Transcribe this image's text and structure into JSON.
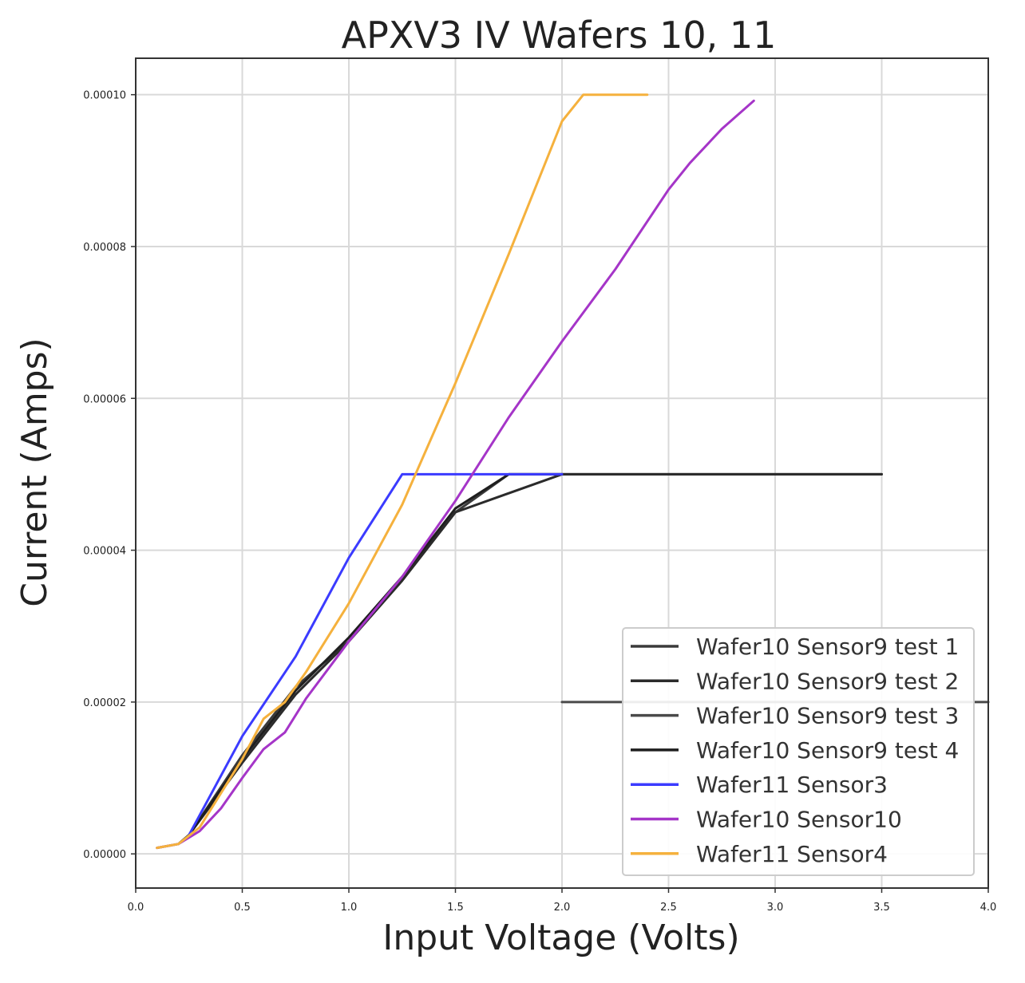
{
  "chart_data": {
    "type": "line",
    "title": "APXV3 IV Wafers 10, 11",
    "xlabel": "Input Voltage (Volts)",
    "ylabel": "Current (Amps)",
    "xlim": [
      0.0,
      4.0
    ],
    "ylim": [
      -4.5e-06,
      0.0001048
    ],
    "xticks": [
      0.0,
      0.5,
      1.0,
      1.5,
      2.0,
      2.5,
      3.0,
      3.5,
      4.0
    ],
    "xtick_labels": [
      "0.0",
      "0.5",
      "1.0",
      "1.5",
      "2.0",
      "2.5",
      "3.0",
      "3.5",
      "4.0"
    ],
    "yticks": [
      0.0,
      2e-05,
      4e-05,
      6e-05,
      8e-05,
      0.0001
    ],
    "ytick_labels": [
      "0.00000",
      "0.00002",
      "0.00004",
      "0.00006",
      "0.00008",
      "0.00010"
    ],
    "grid": true,
    "legend_position": "lower-right",
    "series": [
      {
        "name": "Wafer10 Sensor9 test 1",
        "color": "#3a3a3a",
        "points": [
          [
            0.1,
            8e-07
          ],
          [
            0.2,
            1.3e-06
          ],
          [
            0.25,
            2.5e-06
          ],
          [
            0.5,
            1.3e-05
          ],
          [
            0.75,
            2.2e-05
          ],
          [
            1.0,
            2.8e-05
          ],
          [
            1.25,
            3.6e-05
          ],
          [
            1.5,
            4.5e-05
          ],
          [
            1.75,
            5e-05
          ],
          [
            2.0,
            5e-05
          ],
          [
            2.5,
            5e-05
          ],
          [
            3.0,
            5e-05
          ],
          [
            3.5,
            5e-05
          ]
        ]
      },
      {
        "name": "Wafer10 Sensor9 test 2",
        "color": "#2b2b2b",
        "points": [
          [
            0.25,
            2.5e-06
          ],
          [
            0.5,
            1.2e-05
          ],
          [
            0.75,
            2.1e-05
          ],
          [
            1.0,
            2.8e-05
          ],
          [
            1.25,
            3.6e-05
          ],
          [
            1.5,
            4.5e-05
          ],
          [
            2.0,
            5e-05
          ],
          [
            2.5,
            5e-05
          ],
          [
            3.0,
            5e-05
          ],
          [
            3.5,
            5e-05
          ]
        ]
      },
      {
        "name": "Wafer10 Sensor9 test 3",
        "color": "#4a4a4a",
        "points": [
          [
            2.0,
            2e-05
          ],
          [
            2.5,
            2e-05
          ],
          [
            3.0,
            2e-05
          ],
          [
            3.5,
            2e-05
          ],
          [
            4.0,
            2e-05
          ]
        ]
      },
      {
        "name": "Wafer10 Sensor9 test 4",
        "color": "#1e1e1e",
        "points": [
          [
            0.25,
            2.5e-06
          ],
          [
            0.5,
            1.25e-05
          ],
          [
            0.75,
            2.15e-05
          ],
          [
            1.0,
            2.85e-05
          ],
          [
            1.25,
            3.65e-05
          ],
          [
            1.5,
            4.55e-05
          ],
          [
            1.75,
            5e-05
          ],
          [
            2.0,
            5e-05
          ]
        ]
      },
      {
        "name": "Wafer11 Sensor3",
        "color": "#3b3bff",
        "points": [
          [
            0.25,
            2.5e-06
          ],
          [
            0.5,
            1.55e-05
          ],
          [
            0.75,
            2.6e-05
          ],
          [
            1.0,
            3.9e-05
          ],
          [
            1.25,
            5e-05
          ],
          [
            1.5,
            5e-05
          ],
          [
            1.75,
            5e-05
          ],
          [
            2.0,
            5e-05
          ]
        ]
      },
      {
        "name": "Wafer10 Sensor10",
        "color": "#a535c8",
        "points": [
          [
            0.1,
            8e-07
          ],
          [
            0.2,
            1.3e-06
          ],
          [
            0.3,
            3e-06
          ],
          [
            0.4,
            6e-06
          ],
          [
            0.5,
            1e-05
          ],
          [
            0.6,
            1.38e-05
          ],
          [
            0.7,
            1.6e-05
          ],
          [
            0.8,
            2.05e-05
          ],
          [
            1.0,
            2.8e-05
          ],
          [
            1.25,
            3.65e-05
          ],
          [
            1.5,
            4.65e-05
          ],
          [
            1.75,
            5.75e-05
          ],
          [
            2.0,
            6.75e-05
          ],
          [
            2.25,
            7.7e-05
          ],
          [
            2.5,
            8.75e-05
          ],
          [
            2.6,
            9.1e-05
          ],
          [
            2.75,
            9.55e-05
          ],
          [
            2.9,
            9.92e-05
          ]
        ]
      },
      {
        "name": "Wafer11 Sensor4",
        "color": "#f5b13d",
        "points": [
          [
            0.1,
            8e-07
          ],
          [
            0.2,
            1.3e-06
          ],
          [
            0.3,
            3.5e-06
          ],
          [
            0.5,
            1.25e-05
          ],
          [
            0.6,
            1.78e-05
          ],
          [
            0.7,
            2e-05
          ],
          [
            0.8,
            2.4e-05
          ],
          [
            1.0,
            3.3e-05
          ],
          [
            1.25,
            4.6e-05
          ],
          [
            1.5,
            6.2e-05
          ],
          [
            1.75,
            7.9e-05
          ],
          [
            2.0,
            9.65e-05
          ],
          [
            2.1,
            0.0001
          ],
          [
            2.4,
            0.0001
          ]
        ]
      }
    ]
  }
}
